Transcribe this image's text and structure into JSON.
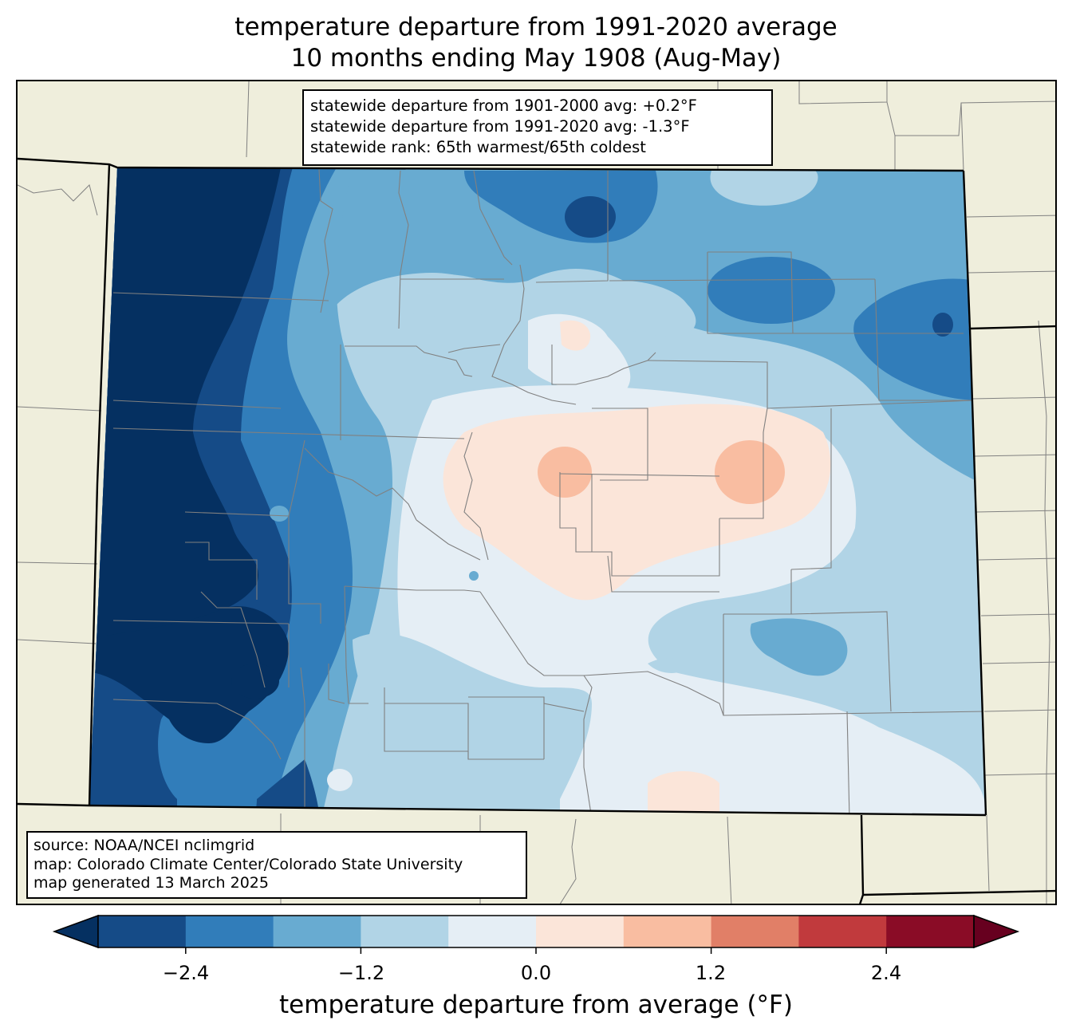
{
  "title": {
    "line1": "temperature departure from 1991-2020 average",
    "line2": "10 months ending May 1908 (Aug-May)"
  },
  "stats_box": {
    "line1": "statewide departure from 1901-2000 avg: +0.2°F",
    "line2": "statewide departure from 1991-2020 avg: -1.3°F",
    "line3": "statewide rank: 65th warmest/65th coldest"
  },
  "credits_box": {
    "line1": "source: NOAA/NCEI nclimgrid",
    "line2": "map: Colorado Climate Center/Colorado State University",
    "line3": "map generated 13 March 2025"
  },
  "colorbar": {
    "label": "temperature departure from average (°F)",
    "ticks": [
      "−2.4",
      "−1.2",
      "0.0",
      "1.2",
      "2.4"
    ],
    "bin_edges": [
      -3.0,
      -2.4,
      -1.8,
      -1.2,
      -0.6,
      0.0,
      0.6,
      1.2,
      1.8,
      2.4,
      3.0
    ],
    "colors": [
      "#053061",
      "#154b87",
      "#317dba",
      "#68abd1",
      "#b1d4e6",
      "#e5eef5",
      "#fbe5d9",
      "#f9bda1",
      "#e17f67",
      "#c13a3d",
      "#8a0c26",
      "#67001f"
    ]
  },
  "map": {
    "region": "Colorado",
    "land_color": "#efeedc",
    "county_line_color": "#808080",
    "state_line_color": "#000000"
  }
}
